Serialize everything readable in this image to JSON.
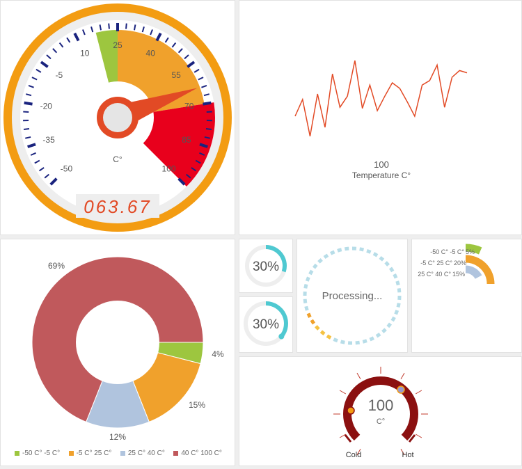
{
  "colors": {
    "green": "#9dc63f",
    "orange": "#f0a12c",
    "red": "#e8001c",
    "blue": "#b0c4de",
    "rose": "#c0595c",
    "teal": "#4fc9d1",
    "line": "#e24a25",
    "darkred": "#8b1010",
    "navy": "#1a237e"
  },
  "gauge": {
    "ticks": [
      "-50",
      "-35",
      "-20",
      "-5",
      "10",
      "25",
      "40",
      "55",
      "70",
      "85",
      "100"
    ],
    "unit": "C°",
    "readout": "063.67",
    "value": 63.67,
    "min": -50,
    "max": 100
  },
  "line_chart": {
    "xlabel_value": "100",
    "xlabel": "Temperature C°"
  },
  "donut": {
    "labels": {
      "green": "4%",
      "orange": "15%",
      "blue": "12%",
      "rose": "69%"
    },
    "legend": [
      "-50 C° -5 C°",
      "-5 C° 25 C°",
      "25 C° 40 C°",
      "40 C° 100 C°"
    ]
  },
  "progress": {
    "small1": {
      "label": "30%",
      "value": 30
    },
    "small2": {
      "label": "30%",
      "value": 30
    },
    "processing": "Processing..."
  },
  "bars": {
    "rows": [
      {
        "range": "-50 C° -5 C°",
        "pct": "5%"
      },
      {
        "range": "-5 C° 25 C°",
        "pct": "20%"
      },
      {
        "range": "25 C° 40 C°",
        "pct": "15%"
      }
    ]
  },
  "thermo": {
    "value": "100",
    "unit": "C°",
    "cold": "Cold",
    "hot": "Hot"
  },
  "chart_data": [
    {
      "type": "line",
      "title": "",
      "xlabel": "Temperature C°",
      "ylabel": "",
      "series": [
        {
          "values": [
            40,
            55,
            22,
            60,
            30,
            78,
            48,
            58,
            90,
            47,
            68,
            45,
            58,
            70,
            65,
            53,
            40,
            68,
            72,
            86,
            48,
            75,
            81,
            79
          ]
        }
      ]
    },
    {
      "type": "pie",
      "title": "",
      "categories": [
        "-50 C° -5 C°",
        "-5 C° 25 C°",
        "25 C° 40 C°",
        "40 C° 100 C°"
      ],
      "values": [
        4,
        15,
        12,
        69
      ]
    }
  ]
}
